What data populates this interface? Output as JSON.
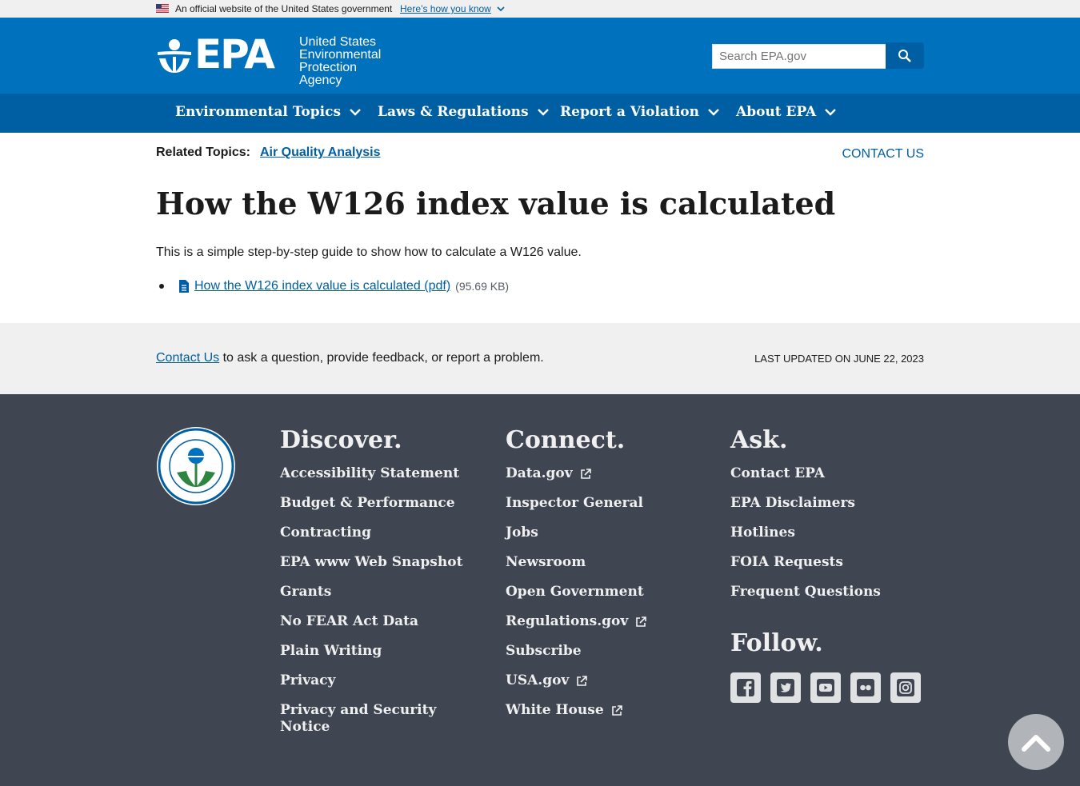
{
  "gov_banner": {
    "official_text": "An official website of the United States government",
    "how_you_know": "Here’s how you know"
  },
  "header": {
    "logo_letters": "EPA",
    "agency_line1": "United States",
    "agency_line2": "Environmental Protection",
    "agency_line3": "Agency",
    "search_placeholder": "Search EPA.gov"
  },
  "nav": {
    "items": [
      {
        "label": "Environmental Topics"
      },
      {
        "label": "Laws & Regulations"
      },
      {
        "label": "Report a Violation"
      },
      {
        "label": "About EPA"
      }
    ]
  },
  "main": {
    "related_label": "Related Topics:",
    "related_topic": "Air Quality Analysis",
    "contact_us": "CONTACT US",
    "title": "How the W126 index value is calculated",
    "intro": "This is a simple step-by-step guide to show how to calculate a W126 value.",
    "file_link": "How the W126 index value is calculated (pdf)",
    "file_size": "(95.69 KB)"
  },
  "feedback": {
    "contact_link": "Contact Us",
    "message": "to ask a question, provide feedback, or report a problem.",
    "last_updated": "LAST UPDATED ON JUNE 22, 2023"
  },
  "footer": {
    "discover": {
      "title": "Discover.",
      "links": [
        "Accessibility Statement",
        "Budget & Performance",
        "Contracting",
        "EPA www Web Snapshot",
        "Grants",
        "No FEAR Act Data",
        "Plain Writing",
        "Privacy",
        "Privacy and Security Notice"
      ]
    },
    "connect": {
      "title": "Connect.",
      "links": [
        "Data.gov",
        "Inspector General",
        "Jobs",
        "Newsroom",
        "Open Government",
        "Regulations.gov",
        "Subscribe",
        "USA.gov",
        "White House"
      ]
    },
    "ask": {
      "title": "Ask.",
      "links": [
        "Contact EPA",
        "EPA Disclaimers",
        "Hotlines",
        "FOIA Requests",
        "Frequent Questions"
      ]
    },
    "follow_title": "Follow.",
    "socials": [
      "facebook-icon",
      "twitter-icon",
      "youtube-icon",
      "flickr-icon",
      "instagram-icon"
    ]
  },
  "colors": {
    "header_blue": "#0071bc",
    "nav_blue": "#005ea2",
    "footer_bg": "#3f4551",
    "band_gray": "#f0f0f0"
  }
}
